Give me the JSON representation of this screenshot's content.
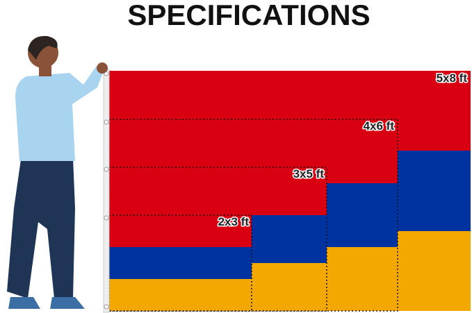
{
  "title": "SPECIFICATIONS",
  "sizes": [
    {
      "label": "5x8 ft"
    },
    {
      "label": "4x6 ft"
    },
    {
      "label": "3x5 ft"
    },
    {
      "label": "2x3 ft"
    }
  ]
}
